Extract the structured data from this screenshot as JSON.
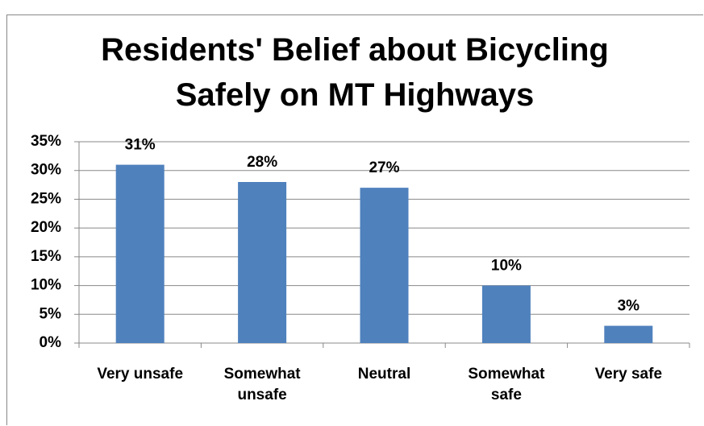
{
  "chart_data": {
    "type": "bar",
    "title": "Residents' Belief about Bicycling Safely on MT Highways",
    "categories": [
      "Very unsafe",
      "Somewhat unsafe",
      "Neutral",
      "Somewhat safe",
      "Very safe"
    ],
    "values": [
      31,
      28,
      27,
      10,
      3
    ],
    "value_labels": [
      "31%",
      "28%",
      "27%",
      "10%",
      "3%"
    ],
    "color": "#4f81bd",
    "ylim": [
      0,
      35
    ],
    "yticks": [
      {
        "value": 0,
        "label": "0%"
      },
      {
        "value": 5,
        "label": "5%"
      },
      {
        "value": 10,
        "label": "10%"
      },
      {
        "value": 15,
        "label": "15%"
      },
      {
        "value": 20,
        "label": "20%"
      },
      {
        "value": 25,
        "label": "25%"
      },
      {
        "value": 30,
        "label": "30%"
      },
      {
        "value": 35,
        "label": "35%"
      }
    ],
    "grid": true
  }
}
